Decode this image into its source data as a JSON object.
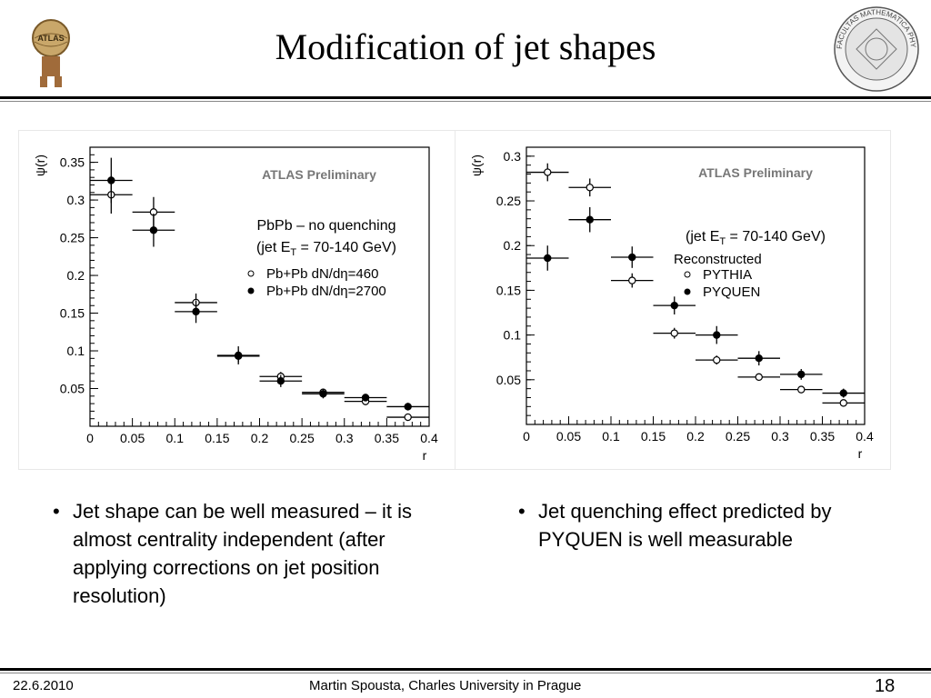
{
  "slide": {
    "title": "Modification of  jet shapes",
    "footer_date": "22.6.2010",
    "footer_author": "Martin Spousta,  Charles University in Prague",
    "page_number": "18",
    "logo_left_text": "ATLAS",
    "logo_right_text": "FACULTAS MATHEMATICA PHYSICAQUE"
  },
  "bullets": [
    {
      "bullet": "•",
      "text": "Jet shape can be well measured – it is almost centrality independent (after applying corrections on jet position resolution)"
    },
    {
      "bullet": "•",
      "text": "Jet quenching effect predicted by PYQUEN is well measurable"
    }
  ],
  "chart_data": [
    {
      "type": "scatter",
      "title": "ATLAS Preliminary",
      "annotation_lines": [
        "PbPb – no quenching",
        "(jet E",
        "T",
        " = 70-140 GeV)"
      ],
      "legend_title": "",
      "ylabel": "ψ(r)",
      "xlabel": "r",
      "xlim": [
        0,
        0.4
      ],
      "ylim": [
        0,
        0.37
      ],
      "xticks": [
        "0",
        "0.05",
        "0.1",
        "0.15",
        "0.2",
        "0.25",
        "0.3",
        "0.35",
        "0.4"
      ],
      "yticks": [
        "0.05",
        "0.1",
        "0.15",
        "0.2",
        "0.25",
        "0.3",
        "0.35"
      ],
      "x": [
        0.025,
        0.075,
        0.125,
        0.175,
        0.225,
        0.275,
        0.325,
        0.375
      ],
      "xerr": 0.025,
      "series": [
        {
          "name": "Pb+Pb dN/dη=460",
          "marker": "open",
          "values": [
            0.307,
            0.284,
            0.164,
            0.093,
            0.066,
            0.045,
            0.033,
            0.012
          ],
          "yerr": [
            0.025,
            0.02,
            0.012,
            0.008,
            0.006,
            0.005,
            0.005,
            0.004
          ]
        },
        {
          "name": "Pb+Pb dN/dη=2700",
          "marker": "filled",
          "values": [
            0.326,
            0.26,
            0.152,
            0.094,
            0.06,
            0.043,
            0.038,
            0.026
          ],
          "yerr": [
            0.03,
            0.022,
            0.015,
            0.012,
            0.008,
            0.006,
            0.005,
            0.005
          ]
        }
      ]
    },
    {
      "type": "scatter",
      "title": "ATLAS Preliminary",
      "annotation_lines": [
        "(jet E",
        "T",
        " = 70-140 GeV)"
      ],
      "legend_title": "Reconstructed",
      "ylabel": "ψ(r)",
      "xlabel": "r",
      "xlim": [
        0,
        0.4
      ],
      "ylim": [
        0,
        0.31
      ],
      "xticks": [
        "0",
        "0.05",
        "0.1",
        "0.15",
        "0.2",
        "0.25",
        "0.3",
        "0.35",
        "0.4"
      ],
      "yticks": [
        "0.05",
        "0.1",
        "0.15",
        "0.2",
        "0.25",
        "0.3"
      ],
      "x": [
        0.025,
        0.075,
        0.125,
        0.175,
        0.225,
        0.275,
        0.325,
        0.375
      ],
      "xerr": 0.025,
      "series": [
        {
          "name": "PYTHIA",
          "marker": "open",
          "values": [
            0.282,
            0.265,
            0.161,
            0.102,
            0.072,
            0.053,
            0.039,
            0.024
          ],
          "yerr": [
            0.01,
            0.01,
            0.008,
            0.006,
            0.005,
            0.004,
            0.003,
            0.003
          ]
        },
        {
          "name": "PYQUEN",
          "marker": "filled",
          "values": [
            0.186,
            0.229,
            0.187,
            0.133,
            0.1,
            0.074,
            0.056,
            0.035
          ],
          "yerr": [
            0.014,
            0.014,
            0.012,
            0.01,
            0.01,
            0.008,
            0.006,
            0.005
          ]
        }
      ]
    }
  ]
}
